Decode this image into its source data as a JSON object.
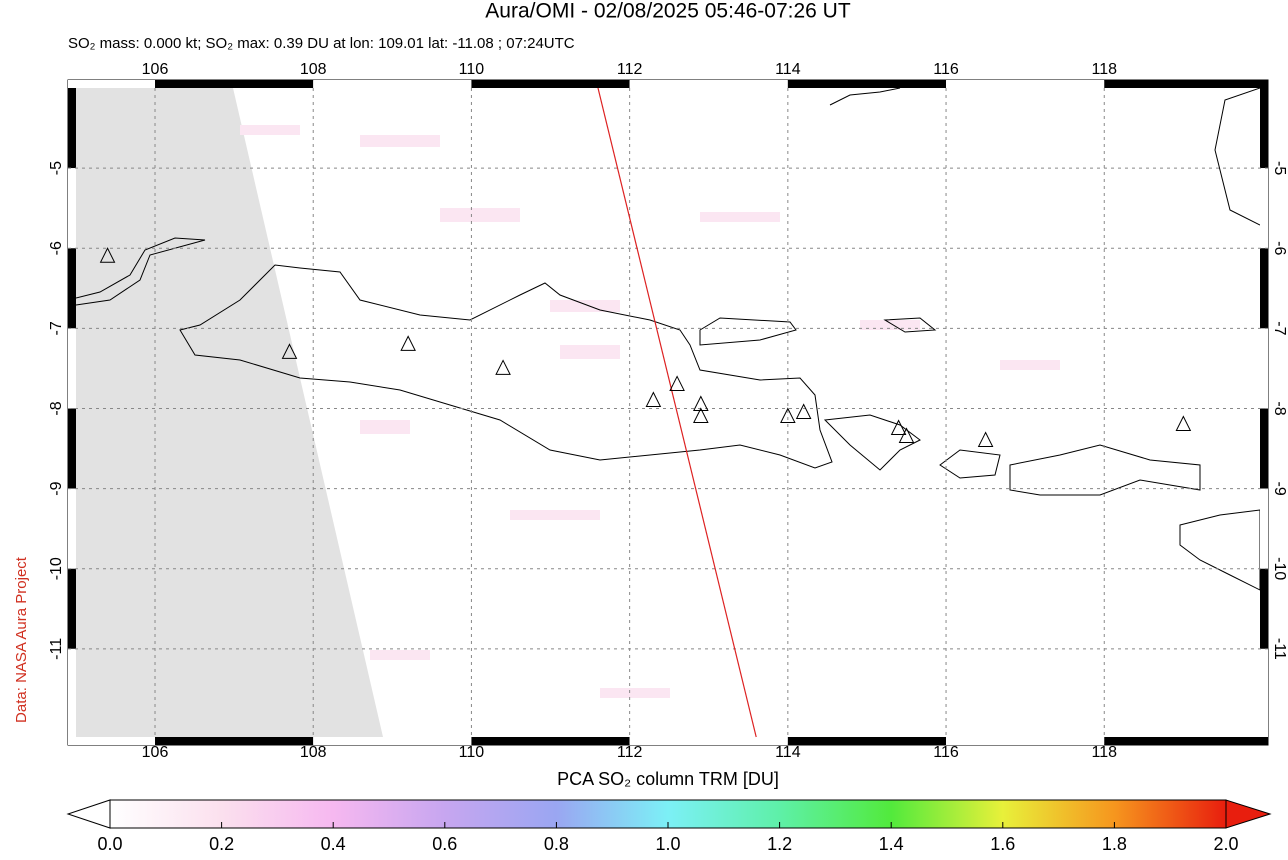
{
  "title": "Aura/OMI - 02/08/2025 05:46-07:26 UT",
  "subtitle": "SO₂ mass: 0.000 kt; SO₂ max: 0.39 DU at lon: 109.01 lat: -11.08 ; 07:24UTC",
  "credit": "Data: NASA Aura Project",
  "map": {
    "lonlim": [
      104.9,
      120.07
    ],
    "latlim": [
      -4.0,
      -12.1
    ],
    "lonticks": [
      106,
      108,
      110,
      112,
      114,
      116,
      118
    ],
    "latticks": [
      -5,
      -6,
      -7,
      -8,
      -9,
      -10,
      -11
    ],
    "track": {
      "lon": [
        111.6,
        113.6
      ],
      "lat": [
        -4.0,
        -12.1
      ],
      "color": "#dd2222"
    },
    "volcanoes": {
      "lon": [
        105.4,
        107.7,
        109.2,
        110.4,
        112.3,
        112.6,
        112.9,
        112.9,
        114.0,
        114.2,
        115.4,
        115.5,
        116.5,
        119.0
      ],
      "lat": [
        -6.1,
        -7.3,
        -7.2,
        -7.5,
        -7.9,
        -7.7,
        -7.95,
        -8.1,
        -8.1,
        -8.05,
        -8.25,
        -8.35,
        -8.4,
        -8.2
      ]
    }
  },
  "colorbar": {
    "label": "PCA SO₂ column TRM [DU]",
    "lim": [
      0,
      2
    ],
    "ticks": [
      {
        "value": 0,
        "label": "0.0"
      },
      {
        "value": 0.2,
        "label": "0.2"
      },
      {
        "value": 0.4,
        "label": "0.4"
      },
      {
        "value": 0.6,
        "label": "0.6"
      },
      {
        "value": 0.8,
        "label": "0.8"
      },
      {
        "value": 1,
        "label": "1.0"
      },
      {
        "value": 1.2,
        "label": "1.2"
      },
      {
        "value": 1.4,
        "label": "1.4"
      },
      {
        "value": 1.6,
        "label": "1.6"
      },
      {
        "value": 1.8,
        "label": "1.8"
      },
      {
        "value": 2,
        "label": "2.0"
      }
    ]
  }
}
